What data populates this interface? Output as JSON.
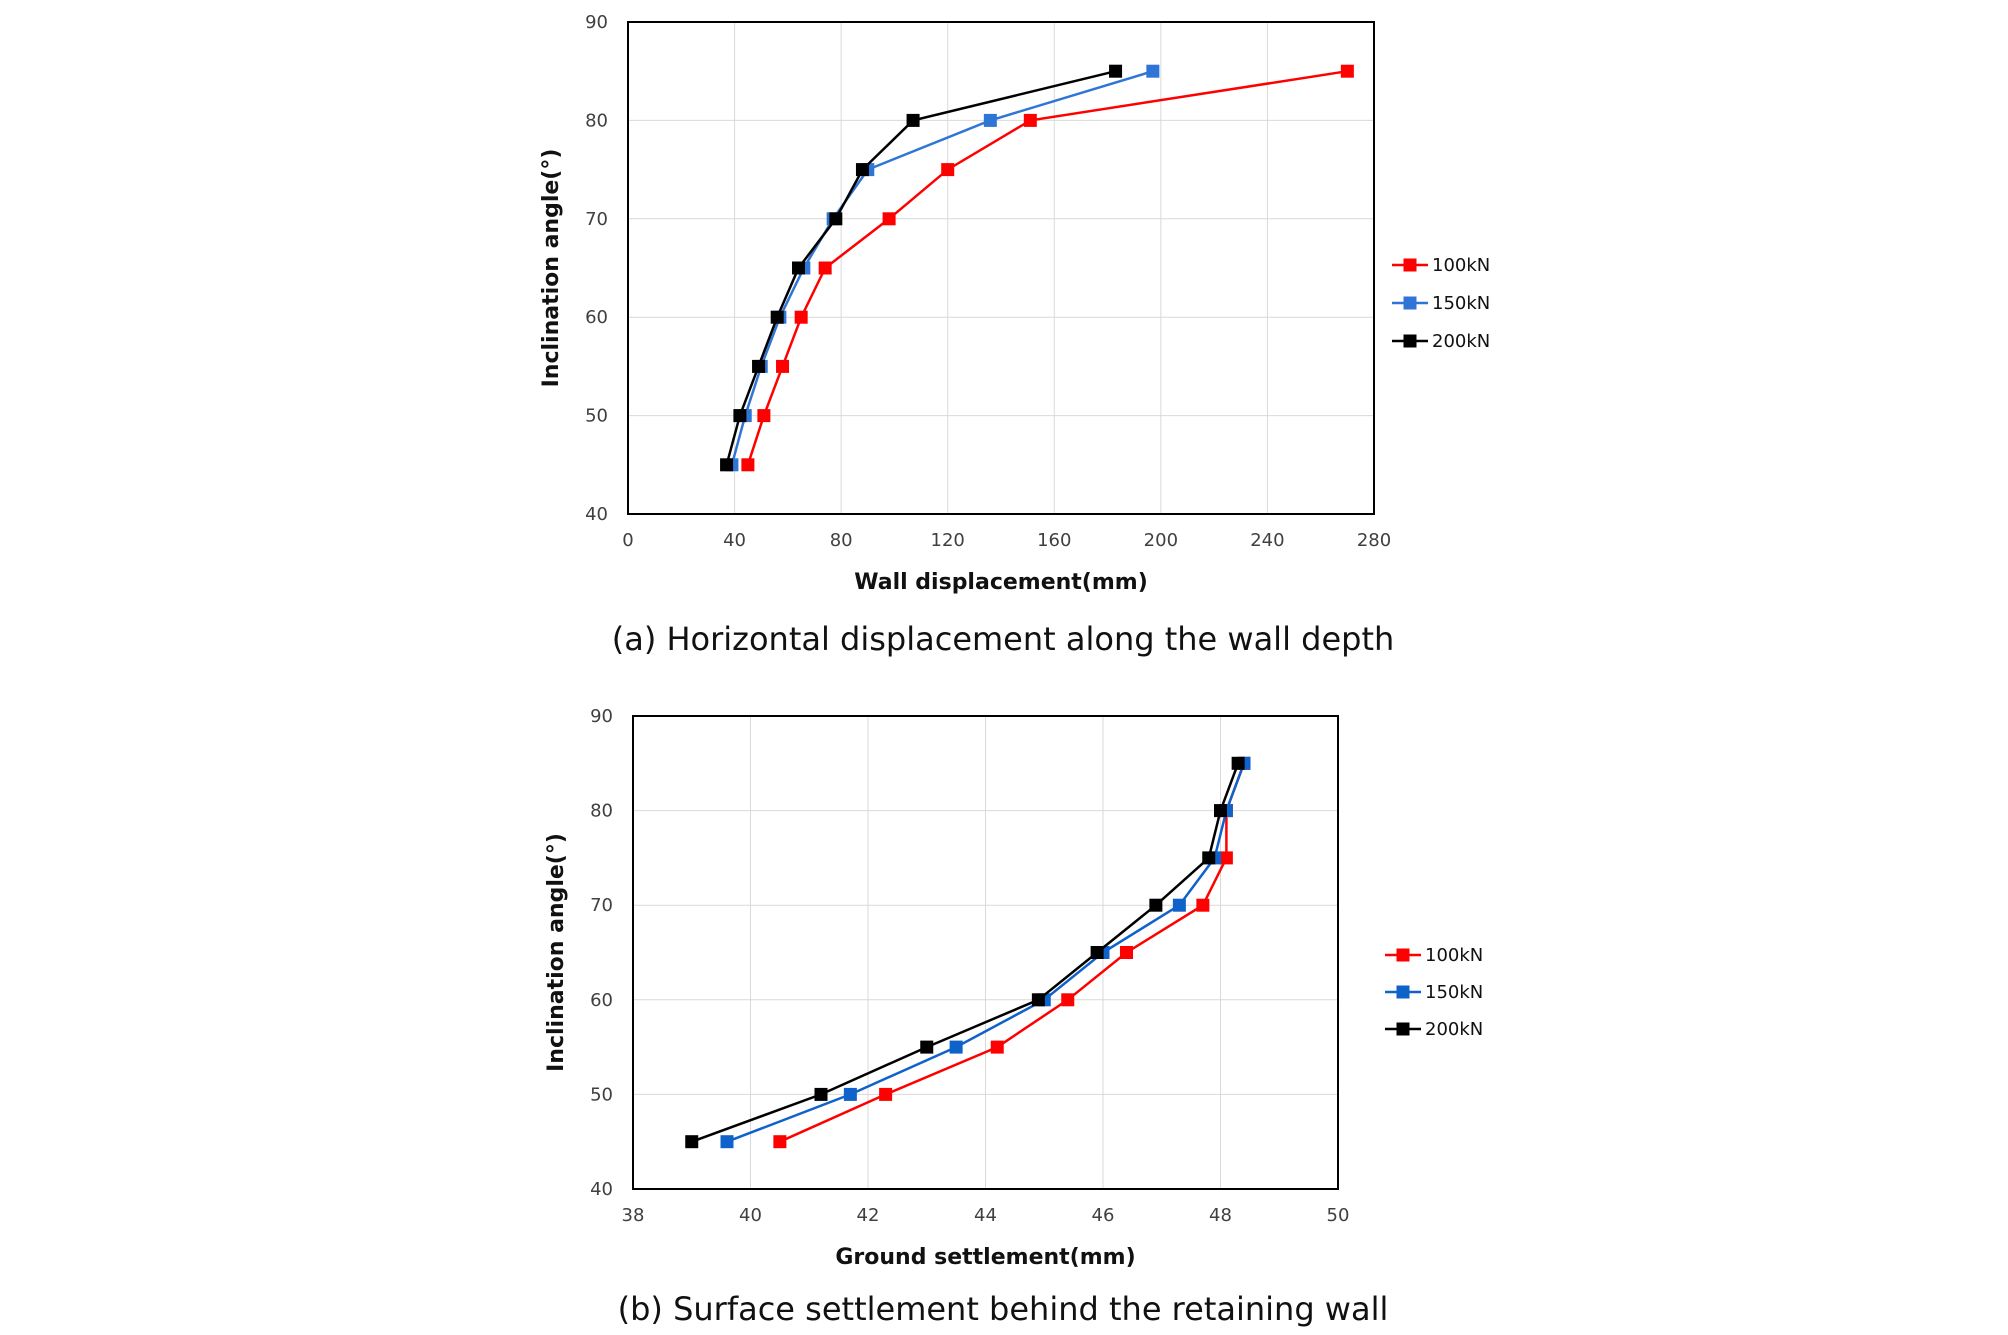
{
  "chart_data": [
    {
      "type": "line",
      "caption": "(a) Horizontal displacement along the wall depth",
      "xlabel": "Wall displacement(mm)",
      "ylabel": "Inclination angle(°)",
      "xlim": [
        0,
        280
      ],
      "ylim": [
        40,
        90
      ],
      "xticks": [
        0,
        40,
        80,
        120,
        160,
        200,
        240,
        280
      ],
      "yticks": [
        40,
        50,
        60,
        70,
        80,
        90
      ],
      "grid": true,
      "legend_position": "right",
      "series": [
        {
          "name": "100kN",
          "color": "#ff0000",
          "x": [
            45,
            51,
            58,
            65,
            74,
            98,
            120,
            151,
            270
          ],
          "y": [
            45,
            50,
            55,
            60,
            65,
            70,
            75,
            80,
            85
          ]
        },
        {
          "name": "150kN",
          "color": "#2f75d6",
          "x": [
            39,
            44,
            50,
            57,
            66,
            77,
            90,
            136,
            197
          ],
          "y": [
            45,
            50,
            55,
            60,
            65,
            70,
            75,
            80,
            85
          ]
        },
        {
          "name": "200kN",
          "color": "#000000",
          "x": [
            37,
            42,
            49,
            56,
            64,
            78,
            88,
            107,
            183
          ],
          "y": [
            45,
            50,
            55,
            60,
            65,
            70,
            75,
            80,
            85
          ]
        }
      ]
    },
    {
      "type": "line",
      "caption": "(b) Surface settlement behind the retaining wall",
      "xlabel": "Ground settlement(mm)",
      "ylabel": "Inclination angle(°)",
      "xlim": [
        38,
        50
      ],
      "ylim": [
        40,
        90
      ],
      "xticks": [
        38,
        40,
        42,
        44,
        46,
        48,
        50
      ],
      "yticks": [
        40,
        50,
        60,
        70,
        80,
        90
      ],
      "grid": true,
      "legend_position": "right",
      "series": [
        {
          "name": "100kN",
          "color": "#ff0000",
          "x": [
            40.5,
            42.3,
            44.2,
            45.4,
            46.4,
            47.7,
            48.1,
            48.1,
            48.4
          ],
          "y": [
            45,
            50,
            55,
            60,
            65,
            70,
            75,
            80,
            85
          ]
        },
        {
          "name": "150kN",
          "color": "#0f62c9",
          "x": [
            39.6,
            41.7,
            43.5,
            45.0,
            46.0,
            47.3,
            47.9,
            48.1,
            48.4
          ],
          "y": [
            45,
            50,
            55,
            60,
            65,
            70,
            75,
            80,
            85
          ]
        },
        {
          "name": "200kN",
          "color": "#000000",
          "x": [
            39.0,
            41.2,
            43.0,
            44.9,
            45.9,
            46.9,
            47.8,
            48.0,
            48.3
          ],
          "y": [
            45,
            50,
            55,
            60,
            65,
            70,
            75,
            80,
            85
          ]
        }
      ]
    }
  ]
}
